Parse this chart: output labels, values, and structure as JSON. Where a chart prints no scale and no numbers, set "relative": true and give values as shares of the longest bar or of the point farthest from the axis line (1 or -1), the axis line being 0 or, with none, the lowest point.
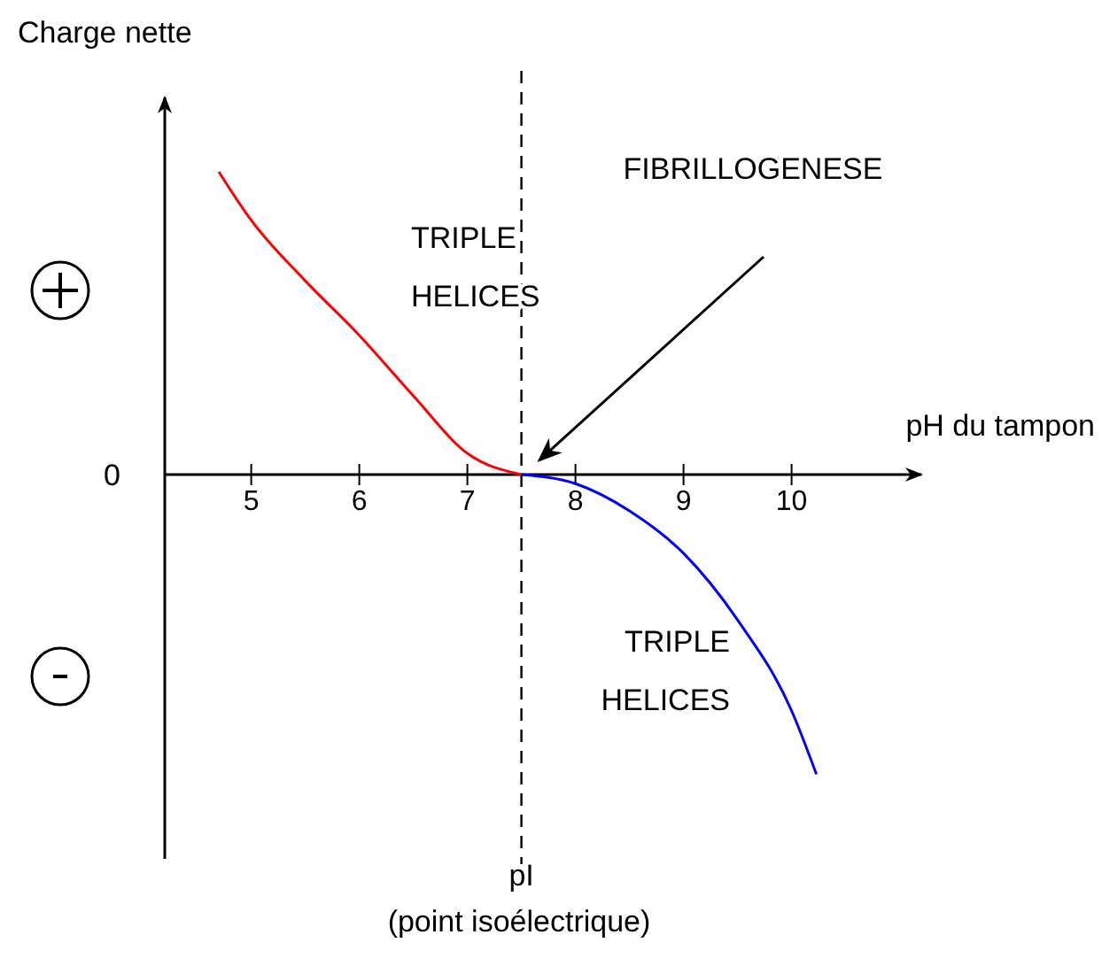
{
  "chart_data": {
    "type": "line",
    "relative": true,
    "xlabel": "pH du tampon",
    "ylabel": "Charge nette",
    "xlim": [
      4.2,
      11.2
    ],
    "xticks": [
      5,
      6,
      7,
      8,
      9,
      10
    ],
    "series": [
      {
        "color": "#ff0000",
        "x": [
          4.7,
          5,
          5.5,
          6,
          6.5,
          7,
          7.5
        ],
        "values": [
          1,
          0.84,
          0.64,
          0.46,
          0.26,
          0.07,
          0
        ]
      },
      {
        "color": "#0000ff",
        "x": [
          7.5,
          8,
          8.5,
          9,
          9.5,
          10,
          10.23
        ],
        "values": [
          0,
          -0.03,
          -0.12,
          -0.26,
          -0.48,
          -0.78,
          -0.99
        ]
      }
    ],
    "ref_lines": [
      {
        "axis": "x",
        "value": 7.5,
        "label": "pI",
        "line_style": "dashed",
        "color": "#000000"
      }
    ],
    "annotations": [
      "0",
      "TRIPLE\nHELICES",
      "TRIPLE\nHELICES",
      "FIBRILLOGENESE",
      "(point isoélectrique)"
    ]
  }
}
